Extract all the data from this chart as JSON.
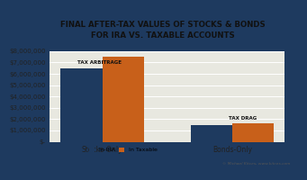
{
  "title": "FINAL AFTER-TAX VALUES OF STOCKS & BONDS\nFOR IRA VS. TAXABLE ACCOUNTS",
  "categories": [
    "Stocks-Only",
    "Bonds-Only"
  ],
  "ira_values": [
    6500000,
    1500000
  ],
  "taxable_values": [
    7500000,
    1600000
  ],
  "ira_color": "#1e3a5f",
  "taxable_color": "#c8601a",
  "ylim": [
    0,
    8000000
  ],
  "yticks": [
    0,
    1000000,
    2000000,
    3000000,
    4000000,
    5000000,
    6000000,
    7000000,
    8000000
  ],
  "legend_labels": [
    "In IRA",
    "In Taxable"
  ],
  "annotation_stocks": "TAX ARBITRAGE",
  "annotation_bonds": "TAX DRAG",
  "background_color": "#e8e8e0",
  "plot_bg_color": "#e8e8e0",
  "border_color": "#1e3a5f",
  "footer_text": "© Michael Kitces, www.kitces.com",
  "bar_width": 0.32,
  "title_fontsize": 6.2,
  "tick_fontsize": 5.0,
  "xlabel_fontsize": 5.5
}
